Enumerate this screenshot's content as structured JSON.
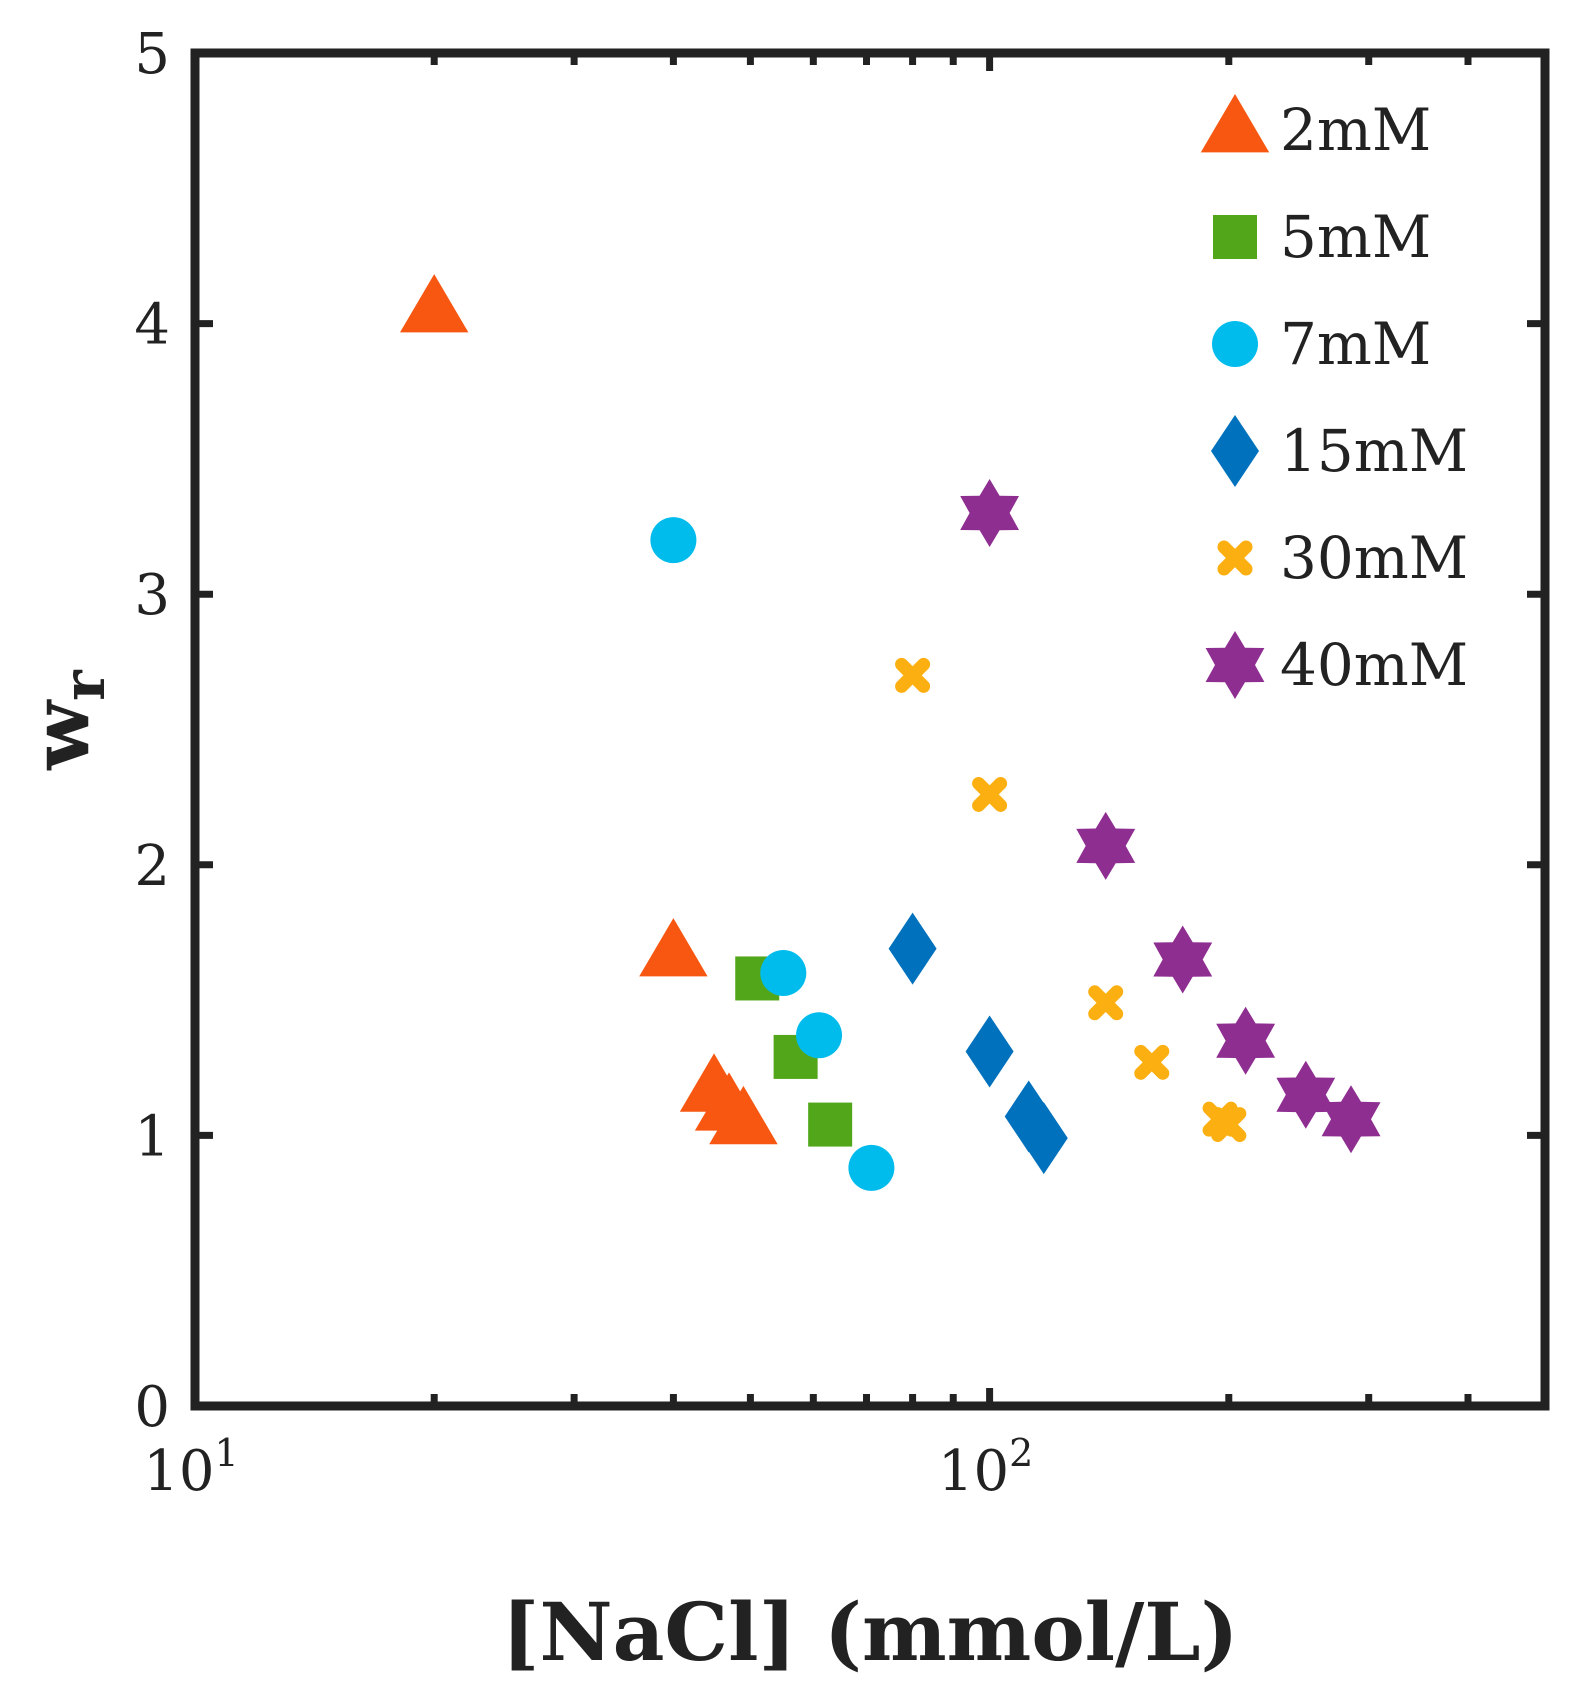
{
  "chart_data": {
    "type": "scatter",
    "xscale": "log",
    "xlim": [
      10,
      500
    ],
    "ylim": [
      0,
      5
    ],
    "xlabel": "[NaCl] (mmol/L)",
    "ylabel": "w",
    "ylabel_sub": "r",
    "xtick_labels": [
      {
        "value": 10,
        "base": "10",
        "exp": "1"
      },
      {
        "value": 100,
        "base": "10",
        "exp": "2"
      }
    ],
    "yticks": [
      0,
      1,
      2,
      3,
      4,
      5
    ],
    "ytick_labels": [
      "0",
      "1",
      "2",
      "3",
      "4",
      "5"
    ],
    "legend_position": "top-right",
    "series": [
      {
        "name": "2mM",
        "marker": "triangle",
        "color": "#F75710",
        "x": [
          20,
          40,
          45,
          47,
          49
        ],
        "y": [
          4.05,
          1.67,
          1.17,
          1.1,
          1.05
        ]
      },
      {
        "name": "5mM",
        "marker": "square",
        "color": "#52A619",
        "x": [
          51,
          57,
          63
        ],
        "y": [
          1.58,
          1.29,
          1.04
        ]
      },
      {
        "name": "7mM",
        "marker": "circle",
        "color": "#00BCED",
        "x": [
          40,
          55,
          61,
          71
        ],
        "y": [
          3.2,
          1.6,
          1.37,
          0.88
        ]
      },
      {
        "name": "15mM",
        "marker": "diamond",
        "color": "#0071BD",
        "x": [
          80,
          100,
          112,
          117
        ],
        "y": [
          1.69,
          1.31,
          1.07,
          0.99
        ]
      },
      {
        "name": "30mM",
        "marker": "x",
        "color": "#FCAF10",
        "x": [
          80,
          100,
          140,
          160,
          195,
          200
        ],
        "y": [
          2.7,
          2.26,
          1.49,
          1.27,
          1.06,
          1.04
        ]
      },
      {
        "name": "40mM",
        "marker": "hexagram",
        "color": "#8E2E91",
        "x": [
          100,
          140,
          175,
          210,
          250,
          285
        ],
        "y": [
          3.3,
          2.07,
          1.65,
          1.35,
          1.15,
          1.06
        ]
      }
    ]
  }
}
